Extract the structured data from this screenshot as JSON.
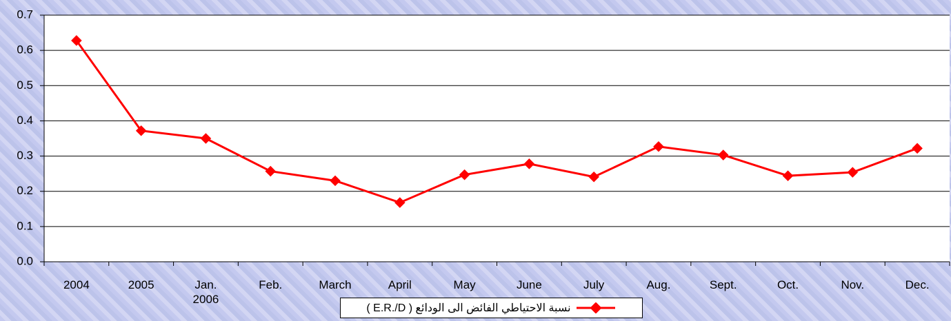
{
  "chart_data": {
    "type": "line",
    "categories": [
      "2004",
      "2005",
      "Jan. 2006",
      "Feb.",
      "March",
      "April",
      "May",
      "June",
      "July",
      "Aug.",
      "Sept.",
      "Oct.",
      "Nov.",
      "Dec."
    ],
    "series": [
      {
        "name": "نسبة الاحتياطي الفائض الى الودائع ( E.R./D )",
        "color": "#ff0000",
        "values": [
          0.628,
          0.372,
          0.35,
          0.257,
          0.23,
          0.168,
          0.247,
          0.278,
          0.241,
          0.327,
          0.303,
          0.244,
          0.254,
          0.322
        ]
      }
    ],
    "ylim": [
      0,
      0.7
    ],
    "yticks": [
      {
        "value": 0,
        "label": "0.0"
      },
      0.1,
      0.2,
      0.3,
      0.4,
      0.5,
      0.6,
      0.7
    ],
    "grid": true,
    "legend": "bottom"
  }
}
